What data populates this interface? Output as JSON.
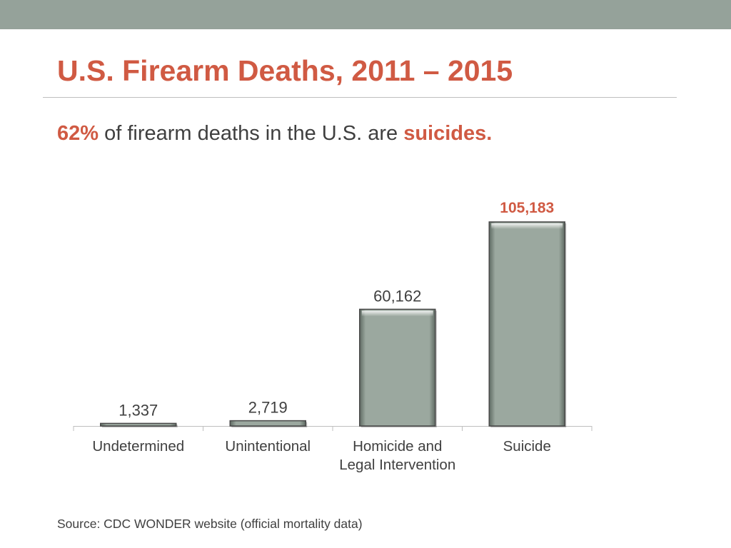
{
  "header": {
    "title": "U.S. Firearm Deaths, 2011 – 2015",
    "subtitle_highlight": "62%",
    "subtitle_text": " of firearm deaths in the U.S. are ",
    "subtitle_emphasis": "suicides."
  },
  "chart_data": {
    "type": "bar",
    "categories": [
      [
        "Undetermined"
      ],
      [
        "Unintentional"
      ],
      [
        "Homicide and",
        "Legal Intervention"
      ],
      [
        "Suicide"
      ]
    ],
    "values": [
      1337,
      2719,
      60162,
      105183
    ],
    "value_labels": [
      "1,337",
      "2,719",
      "60,162",
      "105,183"
    ],
    "highlight_index": 3,
    "ylim": [
      0,
      105183
    ],
    "grid": false,
    "legend": "none",
    "colors": {
      "bar": "#9ba89f",
      "bar_edge": "#4a4a4a",
      "highlight_label": "#d05a43",
      "label": "#404040",
      "axis": "#bfbfbf"
    }
  },
  "footer": {
    "source": "Source: CDC WONDER website (official mortality data)"
  }
}
